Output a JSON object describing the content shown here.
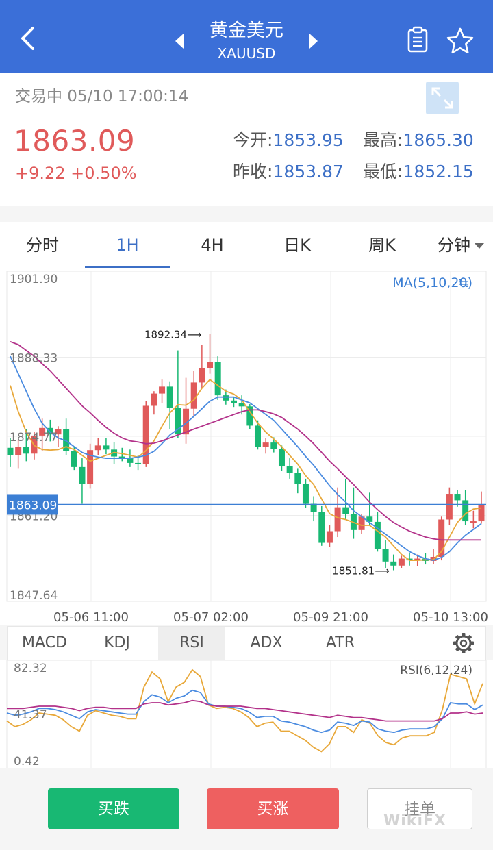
{
  "header": {
    "title": "黄金美元",
    "symbol": "XAUUSD",
    "bg_color": "#3b6fd8",
    "icons": [
      "back-arrow-icon",
      "prev-triangle-icon",
      "next-triangle-icon",
      "clipboard-icon",
      "star-icon"
    ]
  },
  "quote": {
    "status": "交易中 05/10 17:00:14",
    "price": "1863.09",
    "change": "+9.22  +0.50%",
    "open_label": "今开:",
    "open_value": "1853.95",
    "high_label": "最高:",
    "high_value": "1865.30",
    "prev_close_label": "昨收:",
    "prev_close_value": "1853.87",
    "low_label": "最低:",
    "low_value": "1852.15",
    "up_color": "#e05a5a",
    "value_color": "#3c6fc6"
  },
  "tabs": {
    "items": [
      "分时",
      "1H",
      "4H",
      "日K",
      "周K",
      "分钟"
    ],
    "active": "1H"
  },
  "chart_data": {
    "type": "candlestick",
    "ma_label": "MA(5,10,20)",
    "ma_toggle_glyph": "≒",
    "y_ticks": [
      "1901.90",
      "1888.33",
      "1874.77",
      "1861.20",
      "1847.64"
    ],
    "ylim": [
      1847.64,
      1901.9
    ],
    "x_ticks": [
      "05-06 11:00",
      "05-07 02:00",
      "05-09 21:00",
      "05-10 13:00"
    ],
    "current_price": 1863.09,
    "current_price_label": "1863.09",
    "max_label": "1892.34",
    "max_value": 1892.34,
    "min_label": "1851.81",
    "min_value": 1851.81,
    "candles": [
      [
        1872.8,
        1874.5,
        1869.5,
        1871.5
      ],
      [
        1871.5,
        1874.2,
        1869.2,
        1873.0
      ],
      [
        1873.0,
        1876.0,
        1870.5,
        1871.8
      ],
      [
        1871.8,
        1875.5,
        1870.8,
        1874.9
      ],
      [
        1874.9,
        1877.8,
        1872.2,
        1876.2
      ],
      [
        1876.2,
        1877.6,
        1873.9,
        1875.1
      ],
      [
        1875.1,
        1876.5,
        1873.0,
        1876.0
      ],
      [
        1876.0,
        1877.8,
        1871.5,
        1872.2
      ],
      [
        1872.2,
        1873.0,
        1869.0,
        1869.5
      ],
      [
        1869.5,
        1871.0,
        1863.2,
        1866.6
      ],
      [
        1866.6,
        1873.5,
        1865.8,
        1872.4
      ],
      [
        1872.4,
        1874.5,
        1871.5,
        1873.2
      ],
      [
        1873.2,
        1874.5,
        1871.7,
        1872.5
      ],
      [
        1872.5,
        1873.8,
        1870.0,
        1871.3
      ],
      [
        1871.3,
        1872.8,
        1870.5,
        1871.0
      ],
      [
        1871.0,
        1872.5,
        1869.5,
        1870.2
      ],
      [
        1870.2,
        1871.5,
        1869.0,
        1870.0
      ],
      [
        1870.0,
        1880.8,
        1869.5,
        1880.0
      ],
      [
        1880.0,
        1882.5,
        1878.5,
        1882.1
      ],
      [
        1882.1,
        1884.5,
        1880.5,
        1883.3
      ],
      [
        1883.3,
        1884.2,
        1876.0,
        1879.7
      ],
      [
        1879.7,
        1889.5,
        1874.5,
        1875.1
      ],
      [
        1875.1,
        1884.8,
        1873.5,
        1879.5
      ],
      [
        1879.5,
        1886.0,
        1878.0,
        1884.0
      ],
      [
        1884.0,
        1890.5,
        1883.0,
        1886.5
      ],
      [
        1886.5,
        1892.34,
        1885.5,
        1887.5
      ],
      [
        1887.5,
        1888.5,
        1881.0,
        1881.8
      ],
      [
        1881.8,
        1882.8,
        1880.2,
        1880.9
      ],
      [
        1880.9,
        1881.5,
        1879.8,
        1880.5
      ],
      [
        1880.5,
        1881.8,
        1878.5,
        1879.9
      ],
      [
        1879.9,
        1880.3,
        1876.0,
        1876.6
      ],
      [
        1876.6,
        1877.5,
        1872.5,
        1873.0
      ],
      [
        1873.0,
        1874.5,
        1871.8,
        1873.7
      ],
      [
        1873.7,
        1874.6,
        1872.0,
        1872.6
      ],
      [
        1872.6,
        1873.2,
        1868.9,
        1869.6
      ],
      [
        1869.6,
        1871.0,
        1867.5,
        1868.5
      ],
      [
        1868.5,
        1869.2,
        1865.0,
        1866.6
      ],
      [
        1866.6,
        1867.5,
        1862.5,
        1863.2
      ],
      [
        1863.2,
        1864.5,
        1860.2,
        1861.8
      ],
      [
        1861.8,
        1862.8,
        1856.0,
        1856.5
      ],
      [
        1856.5,
        1859.5,
        1855.8,
        1858.5
      ],
      [
        1858.5,
        1866.0,
        1857.5,
        1862.6
      ],
      [
        1862.6,
        1867.5,
        1860.5,
        1861.4
      ],
      [
        1861.4,
        1866.0,
        1857.2,
        1858.7
      ],
      [
        1858.7,
        1861.5,
        1858.0,
        1861.0
      ],
      [
        1861.0,
        1865.1,
        1859.5,
        1860.1
      ],
      [
        1860.1,
        1861.8,
        1855.0,
        1855.5
      ],
      [
        1855.5,
        1857.0,
        1852.2,
        1853.3
      ],
      [
        1853.3,
        1854.5,
        1851.81,
        1852.6
      ],
      [
        1852.6,
        1854.3,
        1852.2,
        1853.8
      ],
      [
        1853.8,
        1854.8,
        1852.6,
        1853.5
      ],
      [
        1853.5,
        1854.5,
        1852.5,
        1853.8
      ],
      [
        1853.8,
        1854.8,
        1852.8,
        1853.4
      ],
      [
        1853.4,
        1855.5,
        1852.9,
        1854.1
      ],
      [
        1854.1,
        1861.0,
        1853.5,
        1860.5
      ],
      [
        1860.5,
        1866.0,
        1859.5,
        1864.9
      ],
      [
        1864.9,
        1865.6,
        1862.7,
        1863.8
      ],
      [
        1863.8,
        1865.6,
        1859.5,
        1860.2
      ],
      [
        1860.2,
        1862.0,
        1859.0,
        1860.2
      ],
      [
        1860.2,
        1865.3,
        1859.8,
        1863.1
      ]
    ],
    "series": [
      {
        "name": "MA5",
        "color": "#e8a83a",
        "values": [
          1883.5,
          1879.0,
          1875.5,
          1873.2,
          1872.5,
          1872.4,
          1872.5,
          1873.0,
          1872.5,
          1871.5,
          1870.5,
          1871.0,
          1871.5,
          1872.0,
          1871.8,
          1871.5,
          1871.2,
          1872.3,
          1874.0,
          1876.5,
          1878.8,
          1880.2,
          1880.1,
          1881.0,
          1883.0,
          1884.5,
          1883.5,
          1882.5,
          1882.0,
          1881.0,
          1879.0,
          1877.0,
          1875.5,
          1874.3,
          1873.0,
          1871.5,
          1870.0,
          1868.0,
          1866.5,
          1864.0,
          1861.5,
          1860.8,
          1860.5,
          1860.0,
          1859.5,
          1859.5,
          1858.5,
          1857.5,
          1856.0,
          1854.5,
          1853.5,
          1853.5,
          1853.6,
          1853.6,
          1855.0,
          1857.5,
          1860.0,
          1861.5,
          1862.3,
          1862.5
        ]
      },
      {
        "name": "MA10",
        "color": "#4a8be0",
        "values": [
          1888.5,
          1885.5,
          1882.5,
          1879.5,
          1877.0,
          1875.5,
          1874.5,
          1874.0,
          1873.0,
          1872.0,
          1871.5,
          1871.2,
          1871.0,
          1871.0,
          1871.0,
          1871.0,
          1871.2,
          1871.5,
          1872.2,
          1873.5,
          1875.0,
          1876.0,
          1877.0,
          1878.2,
          1879.5,
          1880.8,
          1881.5,
          1881.5,
          1881.5,
          1881.0,
          1880.5,
          1879.5,
          1878.5,
          1877.5,
          1876.0,
          1874.5,
          1873.0,
          1871.3,
          1869.8,
          1868.0,
          1866.3,
          1864.8,
          1863.5,
          1862.0,
          1861.0,
          1860.0,
          1859.0,
          1858.0,
          1857.0,
          1856.0,
          1855.0,
          1854.3,
          1853.8,
          1853.5,
          1854.0,
          1855.0,
          1856.5,
          1857.8,
          1858.8,
          1859.8
        ]
      },
      {
        "name": "MA20",
        "color": "#b3328a",
        "values": [
          1891.0,
          1890.5,
          1889.5,
          1888.5,
          1887.2,
          1886.0,
          1884.5,
          1883.0,
          1881.5,
          1880.0,
          1878.8,
          1877.5,
          1876.3,
          1875.3,
          1874.5,
          1874.0,
          1873.8,
          1873.5,
          1873.6,
          1874.0,
          1874.5,
          1875.0,
          1875.5,
          1876.0,
          1876.5,
          1877.0,
          1877.5,
          1878.0,
          1878.5,
          1879.0,
          1879.3,
          1879.3,
          1879.0,
          1878.6,
          1878.0,
          1877.0,
          1876.0,
          1874.8,
          1873.5,
          1872.0,
          1870.5,
          1869.2,
          1867.8,
          1866.5,
          1865.0,
          1863.5,
          1862.2,
          1861.0,
          1860.0,
          1859.2,
          1858.5,
          1858.0,
          1857.5,
          1857.2,
          1857.0,
          1857.0,
          1857.0,
          1857.0,
          1857.0,
          1857.0
        ]
      }
    ]
  },
  "indicator_tabs": {
    "items": [
      "MACD",
      "KDJ",
      "RSI",
      "ADX",
      "ATR"
    ],
    "active": "RSI"
  },
  "rsi_data": {
    "type": "line",
    "label": "RSI(6,12,24)",
    "y_ticks": [
      "82.32",
      "41.37",
      "0.42"
    ],
    "ylim": [
      0.42,
      82.32
    ],
    "series": [
      {
        "name": "RSI6",
        "color": "#e8a83a",
        "values": [
          35,
          30,
          32,
          36,
          42,
          41,
          40,
          36,
          30,
          26,
          40,
          44,
          42,
          40,
          39,
          37,
          37,
          65,
          78,
          72,
          52,
          65,
          69,
          80,
          74,
          49,
          46,
          47,
          46,
          43,
          38,
          30,
          33,
          34,
          26,
          26,
          22,
          18,
          12,
          8,
          15,
          30,
          30,
          25,
          36,
          33,
          22,
          16,
          14,
          20,
          22,
          22,
          22,
          25,
          45,
          76,
          74,
          72,
          50,
          68
        ]
      },
      {
        "name": "RSI12",
        "color": "#4a8be0",
        "values": [
          42,
          40,
          41,
          43,
          46,
          46,
          45,
          43,
          40,
          37,
          43,
          45,
          44,
          43,
          42,
          41,
          41,
          52,
          58,
          56,
          51,
          55,
          57,
          62,
          60,
          50,
          48,
          48,
          47,
          46,
          43,
          38,
          39,
          39,
          35,
          34,
          32,
          30,
          27,
          25,
          27,
          34,
          33,
          31,
          35,
          34,
          28,
          26,
          25,
          27,
          28,
          28,
          28,
          30,
          37,
          51,
          50,
          50,
          45,
          49
        ]
      },
      {
        "name": "RSI24",
        "color": "#b3328a",
        "values": [
          46,
          46,
          46,
          47,
          48,
          48,
          48,
          47,
          46,
          44,
          46,
          47,
          47,
          46,
          46,
          46,
          46,
          50,
          51,
          51,
          49,
          50,
          51,
          53,
          52,
          49,
          48,
          48,
          48,
          48,
          47,
          46,
          46,
          45,
          44,
          43,
          42,
          41,
          40,
          39,
          38,
          40,
          39,
          38,
          38,
          37,
          36,
          35,
          35,
          35,
          35,
          35,
          35,
          35,
          37,
          42,
          42,
          43,
          41,
          42
        ]
      }
    ]
  },
  "bottom": {
    "sell_label": "买跌",
    "buy_label": "买涨",
    "order_label": "挂单",
    "sell_color": "#18b873",
    "buy_color": "#ee6060",
    "watermark": "WikiFX"
  }
}
